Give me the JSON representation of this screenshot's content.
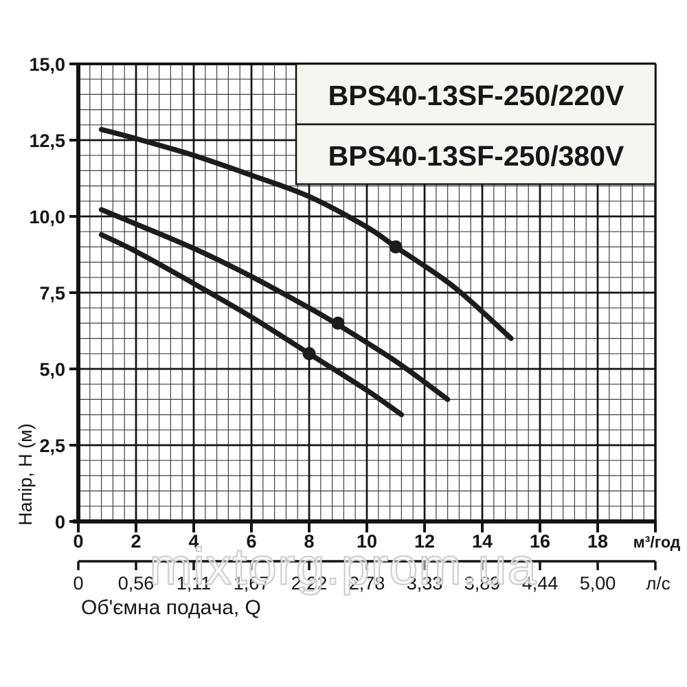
{
  "watermark": "mixtorg.prom.ua",
  "label_boxes": [
    "BPS40-13SF-250/220V",
    "BPS40-13SF-250/380V"
  ],
  "chart_data": {
    "type": "line",
    "title": "",
    "ylabel": "Напір, Н (м)",
    "xlabel": "Об'ємна подача, Q",
    "grid": {
      "minor_step_x": 0.4,
      "minor_step_y": 0.5,
      "major_step_x": 2,
      "major_step_y": 2.5,
      "grid_on": true
    },
    "x_axis_primary": {
      "unit": "м³/год",
      "range": [
        0,
        20
      ],
      "tick_values": [
        0,
        2,
        4,
        6,
        8,
        10,
        12,
        14,
        16,
        18
      ],
      "tick_labels": [
        "0",
        "2",
        "4",
        "6",
        "8",
        "10",
        "12",
        "14",
        "16",
        "18"
      ]
    },
    "x_axis_secondary": {
      "unit": "л/с",
      "range": [
        0,
        20
      ],
      "tick_values": [
        0,
        2,
        4,
        6,
        8,
        10,
        12,
        14,
        16,
        18
      ],
      "tick_labels": [
        "0",
        "0,56",
        "1,11",
        "1,67",
        "2,22",
        "2,78",
        "3,33",
        "3,89",
        "4,44",
        "5,00"
      ]
    },
    "y_axis": {
      "range": [
        0,
        15
      ],
      "tick_values": [
        0,
        2.5,
        5,
        7.5,
        10,
        12.5,
        15
      ],
      "tick_labels": [
        "0",
        "2,5",
        "5,0",
        "7,5",
        "10,0",
        "12,5",
        "15,0"
      ]
    },
    "series": [
      {
        "points": [
          [
            0.8,
            12.85
          ],
          [
            2,
            12.55
          ],
          [
            4,
            12.0
          ],
          [
            6,
            11.35
          ],
          [
            8,
            10.65
          ],
          [
            10,
            9.65
          ],
          [
            11,
            9.0
          ],
          [
            13,
            7.7
          ],
          [
            15,
            6.0
          ]
        ],
        "marker_point": [
          11,
          9.0
        ]
      },
      {
        "points": [
          [
            0.8,
            10.22
          ],
          [
            2,
            9.75
          ],
          [
            4,
            8.95
          ],
          [
            6,
            8.03
          ],
          [
            8,
            7.0
          ],
          [
            9,
            6.45
          ],
          [
            11,
            5.25
          ],
          [
            12.8,
            4.0
          ]
        ],
        "marker_point": [
          9,
          6.5
        ]
      },
      {
        "points": [
          [
            0.8,
            9.4
          ],
          [
            2,
            8.85
          ],
          [
            4,
            7.8
          ],
          [
            6,
            6.7
          ],
          [
            8,
            5.5
          ],
          [
            10,
            4.3
          ],
          [
            11.2,
            3.5
          ]
        ],
        "marker_point": [
          8,
          5.5
        ]
      }
    ],
    "colors": {
      "curve": "#1c1c1c",
      "grid_minor": "#404040",
      "grid_major": "#141414",
      "axis": "#141414",
      "box_fill": "#f7f5f0",
      "watermark_stroke": "#c4c4c4",
      "background": "#ffffff"
    }
  }
}
